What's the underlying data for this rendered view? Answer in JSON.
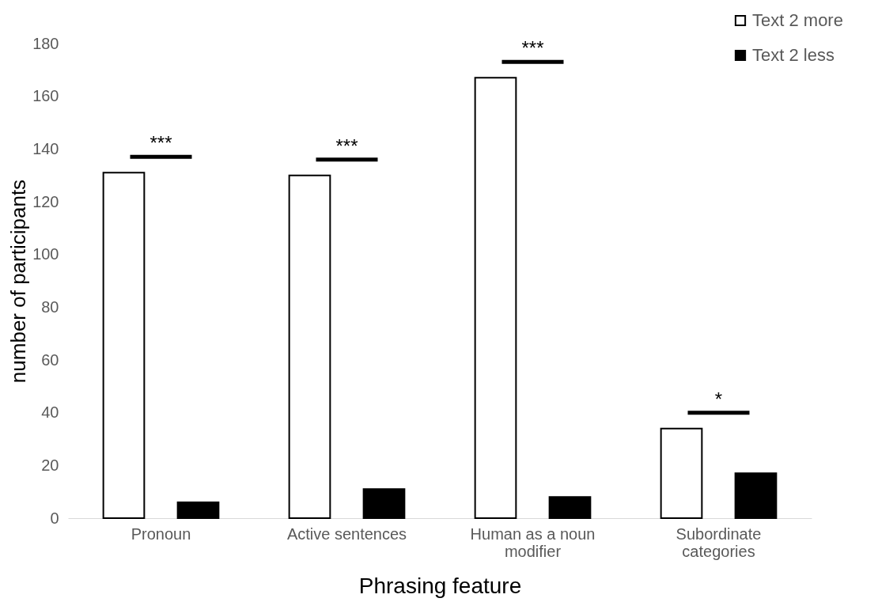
{
  "chart_data": {
    "type": "bar",
    "xlabel": "Phrasing feature",
    "ylabel": "number of participants",
    "categories": [
      "Pronoun",
      "Active sentences",
      "Human as a noun modifier",
      "Subordinate categories"
    ],
    "series": [
      {
        "name": "Text 2 more",
        "color": "#ffffff",
        "values": [
          131,
          130,
          167,
          34
        ]
      },
      {
        "name": "Text 2 less",
        "color": "#000000",
        "values": [
          6,
          11,
          8,
          17
        ]
      }
    ],
    "ylim": [
      0,
      180
    ],
    "yticks": [
      0,
      20,
      40,
      60,
      80,
      100,
      120,
      140,
      160,
      180
    ],
    "grid": false,
    "legend": "top right",
    "annotations": [
      "***",
      "***",
      "***",
      "*"
    ]
  }
}
